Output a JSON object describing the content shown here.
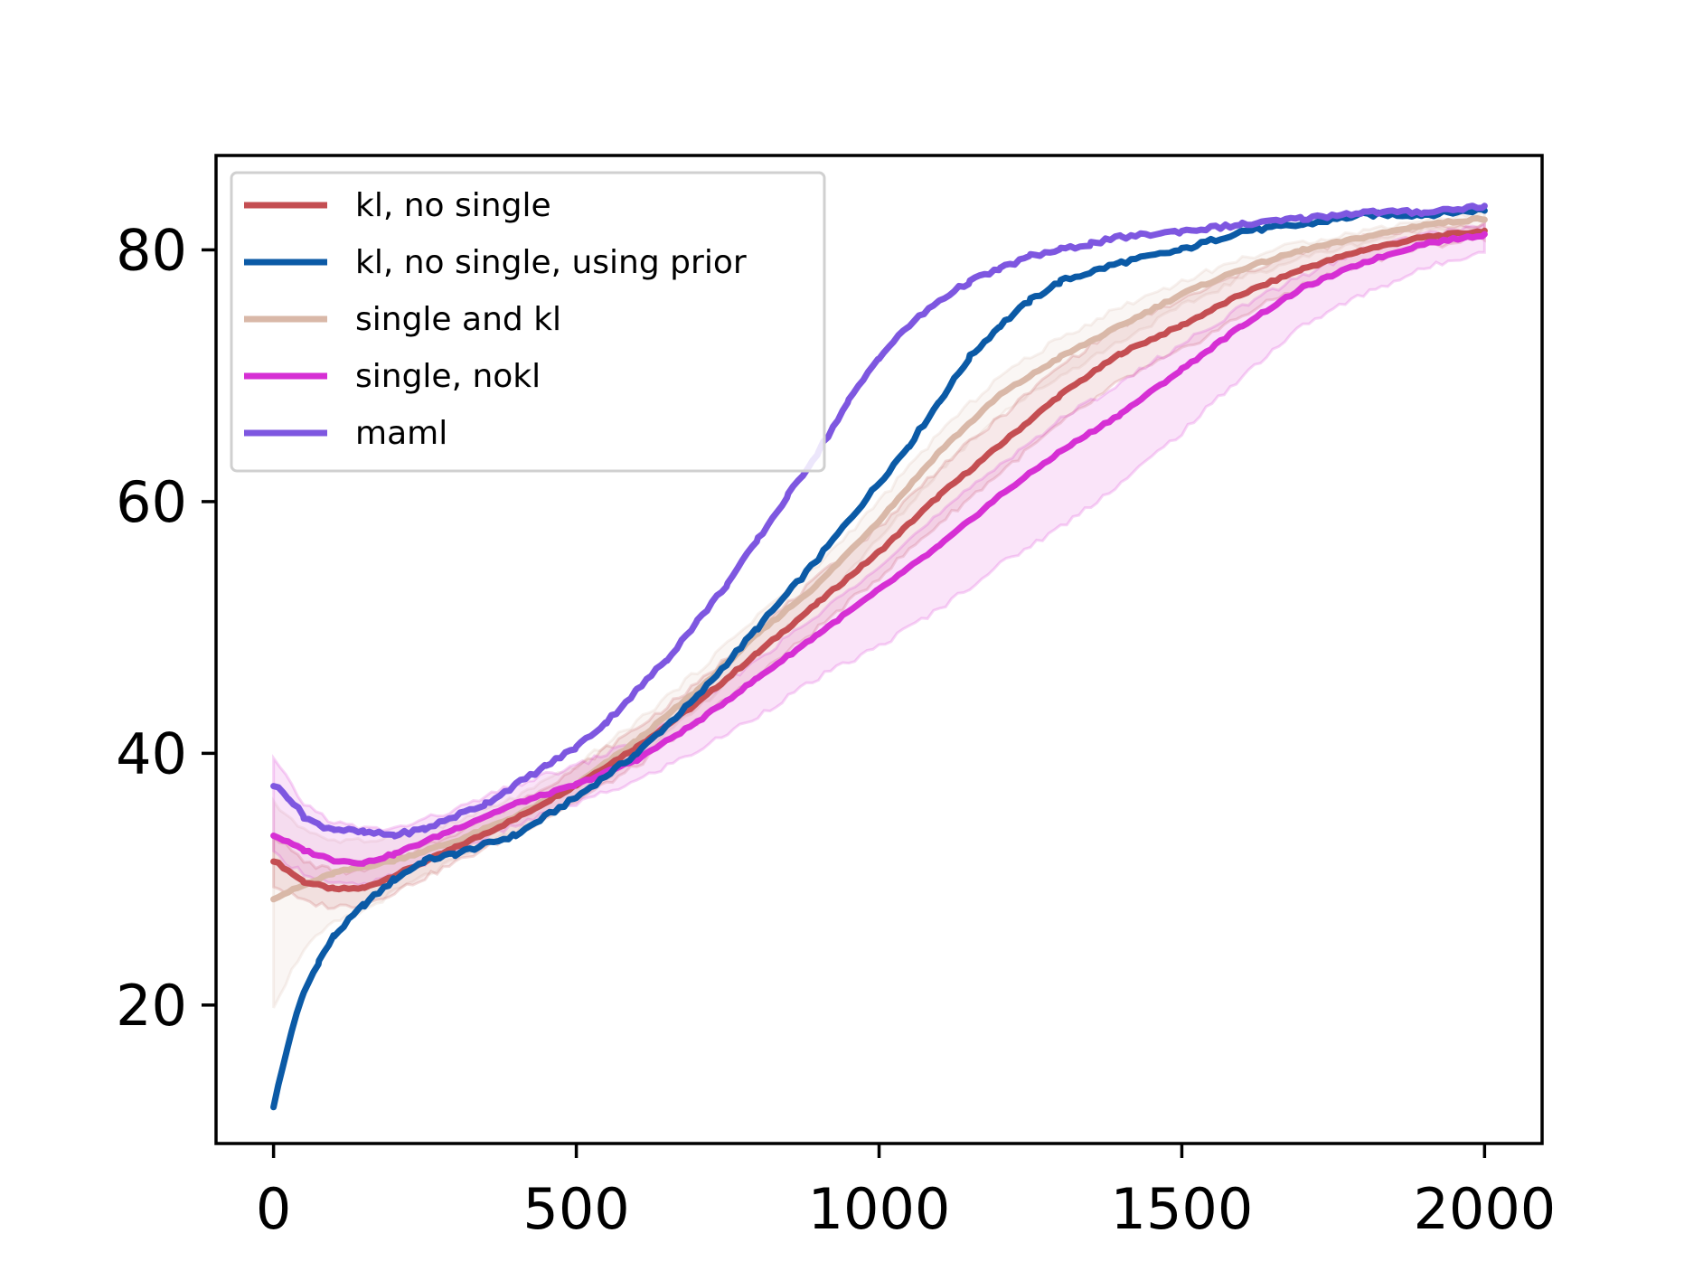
{
  "chart_data": {
    "type": "line",
    "title": "",
    "xlabel": "",
    "ylabel": "",
    "xlim": [
      -95,
      2095
    ],
    "ylim": [
      9,
      87.5
    ],
    "xticks": [
      0,
      500,
      1000,
      1500,
      2000
    ],
    "xtick_labels": [
      "0",
      "500",
      "1000",
      "1500",
      "2000"
    ],
    "yticks": [
      20,
      40,
      60,
      80
    ],
    "ytick_labels": [
      "20",
      "40",
      "60",
      "80"
    ],
    "grid": false,
    "legend_position": "top-left",
    "series": [
      {
        "name": "kl, no single",
        "color": "#c44e52",
        "x": [
          0,
          50,
          100,
          150,
          200,
          300,
          400,
          500,
          600,
          700,
          800,
          900,
          1000,
          1100,
          1200,
          1300,
          1400,
          1500,
          1600,
          1700,
          1800,
          1900,
          2000
        ],
        "values": [
          31.5,
          29.8,
          29.2,
          29.3,
          30.3,
          32.5,
          34.8,
          37.5,
          40.5,
          44.0,
          48.0,
          52.0,
          56.0,
          60.5,
          64.5,
          68.5,
          71.8,
          74.0,
          76.5,
          78.5,
          80.0,
          81.0,
          81.5
        ],
        "band_lower": [
          29.5,
          28.2,
          27.8,
          28.0,
          29.0,
          31.3,
          33.6,
          36.2,
          39.0,
          42.5,
          46.2,
          50.0,
          54.0,
          58.3,
          62.3,
          66.2,
          69.6,
          72.0,
          74.8,
          77.2,
          79.0,
          80.2,
          81.0
        ],
        "band_upper": [
          33.5,
          31.4,
          30.6,
          30.6,
          31.6,
          33.7,
          36.0,
          38.8,
          42.0,
          45.5,
          49.8,
          54.0,
          58.0,
          62.7,
          66.7,
          70.8,
          74.0,
          76.0,
          78.2,
          79.8,
          81.0,
          81.8,
          82.0
        ]
      },
      {
        "name": "kl, no single, using prior",
        "color": "#0b5aa6",
        "x": [
          0,
          15,
          30,
          50,
          75,
          100,
          150,
          200,
          250,
          300,
          400,
          500,
          600,
          700,
          800,
          900,
          1000,
          1050,
          1100,
          1150,
          1200,
          1250,
          1300,
          1400,
          1500,
          1600,
          1700,
          1800,
          1900,
          2000
        ],
        "values": [
          12.0,
          15.0,
          18.0,
          21.0,
          23.5,
          25.5,
          28.0,
          30.0,
          31.5,
          32.0,
          33.5,
          36.5,
          40.0,
          44.5,
          50.0,
          55.5,
          61.5,
          64.5,
          68.0,
          71.5,
          74.0,
          76.0,
          77.5,
          79.0,
          80.0,
          81.5,
          82.0,
          82.8,
          82.8,
          83.2
        ],
        "band_lower": [
          12.0,
          15.0,
          18.0,
          21.0,
          23.5,
          25.5,
          28.0,
          30.0,
          31.5,
          32.0,
          33.5,
          36.5,
          40.0,
          44.5,
          50.0,
          55.5,
          61.5,
          64.5,
          68.0,
          71.5,
          74.0,
          76.0,
          77.5,
          79.0,
          80.0,
          81.5,
          82.0,
          82.8,
          82.8,
          83.2
        ],
        "band_upper": [
          12.0,
          15.0,
          18.0,
          21.0,
          23.5,
          25.5,
          28.0,
          30.0,
          31.5,
          32.0,
          33.5,
          36.5,
          40.0,
          44.5,
          50.0,
          55.5,
          61.5,
          64.5,
          68.0,
          71.5,
          74.0,
          76.0,
          77.5,
          79.0,
          80.0,
          81.5,
          82.0,
          82.8,
          82.8,
          83.2
        ]
      },
      {
        "name": "single and kl",
        "color": "#d9b8a8",
        "x": [
          0,
          50,
          100,
          150,
          200,
          300,
          400,
          500,
          600,
          700,
          800,
          900,
          1000,
          1100,
          1200,
          1300,
          1400,
          1500,
          1600,
          1700,
          1800,
          1900,
          2000
        ],
        "values": [
          28.5,
          29.5,
          30.5,
          31.0,
          31.5,
          33.0,
          35.0,
          37.5,
          41.0,
          45.0,
          49.5,
          53.5,
          58.5,
          64.0,
          68.5,
          71.5,
          74.0,
          76.5,
          78.5,
          80.0,
          81.0,
          82.0,
          82.5
        ],
        "band_lower": [
          20.0,
          24.5,
          26.5,
          27.5,
          29.0,
          31.5,
          33.8,
          36.3,
          39.6,
          43.5,
          48.0,
          52.0,
          57.0,
          62.5,
          67.0,
          70.0,
          72.8,
          75.5,
          77.8,
          79.4,
          80.6,
          81.6,
          82.0
        ],
        "band_upper": [
          36.0,
          34.0,
          33.0,
          33.0,
          33.5,
          34.5,
          36.5,
          39.0,
          42.5,
          46.5,
          51.0,
          55.0,
          60.0,
          65.5,
          70.0,
          73.0,
          75.5,
          77.5,
          79.3,
          80.6,
          81.5,
          82.4,
          83.0
        ]
      },
      {
        "name": "single, nokl",
        "color": "#d62fd4",
        "x": [
          0,
          50,
          100,
          150,
          200,
          300,
          400,
          500,
          600,
          700,
          800,
          900,
          1000,
          1100,
          1200,
          1300,
          1400,
          1500,
          1600,
          1700,
          1800,
          1900,
          2000
        ],
        "values": [
          33.5,
          32.3,
          31.5,
          31.3,
          32.0,
          34.0,
          36.0,
          37.5,
          39.5,
          42.5,
          46.0,
          49.5,
          53.0,
          56.5,
          60.5,
          64.0,
          67.0,
          70.5,
          74.0,
          77.0,
          79.0,
          80.5,
          81.2
        ],
        "band_lower": [
          32.0,
          30.5,
          29.6,
          29.5,
          30.3,
          32.3,
          34.3,
          36.0,
          37.8,
          40.2,
          43.0,
          46.0,
          48.5,
          51.5,
          55.0,
          58.0,
          61.5,
          65.5,
          70.0,
          74.0,
          76.5,
          78.5,
          80.0
        ],
        "band_upper": [
          39.5,
          36.0,
          34.5,
          34.0,
          34.0,
          35.5,
          37.5,
          39.0,
          41.0,
          44.0,
          47.5,
          51.0,
          55.0,
          59.0,
          63.0,
          66.5,
          69.5,
          72.5,
          75.5,
          78.0,
          80.0,
          81.2,
          82.0
        ]
      },
      {
        "name": "maml",
        "color": "#7e57e0",
        "x": [
          0,
          25,
          50,
          75,
          100,
          150,
          200,
          250,
          300,
          350,
          400,
          450,
          500,
          550,
          600,
          650,
          700,
          750,
          800,
          850,
          900,
          950,
          1000,
          1050,
          1100,
          1150,
          1200,
          1250,
          1300,
          1350,
          1400,
          1500,
          1600,
          1700,
          1800,
          1900,
          2000
        ],
        "values": [
          37.5,
          36.5,
          35.0,
          34.3,
          34.0,
          33.7,
          33.5,
          34.0,
          35.0,
          36.0,
          37.5,
          39.0,
          40.5,
          42.5,
          45.0,
          47.5,
          50.5,
          53.5,
          57.0,
          60.5,
          64.0,
          68.0,
          71.5,
          74.0,
          76.0,
          77.5,
          78.5,
          79.5,
          80.0,
          80.5,
          81.0,
          81.5,
          82.0,
          82.5,
          83.0,
          83.0,
          83.5
        ],
        "band_lower": [
          37.5,
          36.5,
          35.0,
          34.3,
          34.0,
          33.7,
          33.5,
          34.0,
          35.0,
          36.0,
          37.5,
          39.0,
          40.5,
          42.5,
          45.0,
          47.5,
          50.5,
          53.5,
          57.0,
          60.5,
          64.0,
          68.0,
          71.5,
          74.0,
          76.0,
          77.5,
          78.5,
          79.5,
          80.0,
          80.5,
          81.0,
          81.5,
          82.0,
          82.5,
          83.0,
          83.0,
          83.5
        ],
        "band_upper": [
          37.5,
          36.5,
          35.0,
          34.3,
          34.0,
          33.7,
          33.5,
          34.0,
          35.0,
          36.0,
          37.5,
          39.0,
          40.5,
          42.5,
          45.0,
          47.5,
          50.5,
          53.5,
          57.0,
          60.5,
          64.0,
          68.0,
          71.5,
          74.0,
          76.0,
          77.5,
          78.5,
          79.5,
          80.0,
          80.5,
          81.0,
          81.5,
          82.0,
          82.5,
          83.0,
          83.0,
          83.5
        ]
      }
    ]
  }
}
